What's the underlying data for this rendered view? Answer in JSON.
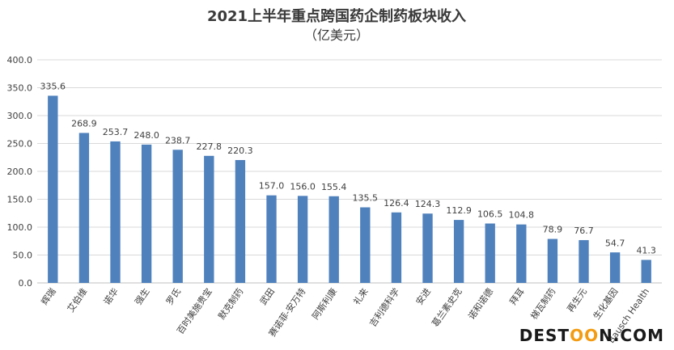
{
  "chart_data": {
    "type": "bar",
    "title": "2021上半年重点跨国药企制药板块收入",
    "subtitle": "（亿美元）",
    "categories": [
      "辉瑞",
      "艾伯维",
      "诺华",
      "强生",
      "罗氏",
      "百时美施贵宝",
      "默克制药",
      "武田",
      "赛诺菲-安万特",
      "阿斯利康",
      "礼来",
      "吉利德科学",
      "安进",
      "葛兰素史克",
      "诺和诺德",
      "拜耳",
      "梯瓦制药",
      "再生元",
      "生化基因",
      "Bausch Health"
    ],
    "values": [
      335.6,
      268.9,
      253.7,
      248.0,
      238.7,
      227.8,
      220.3,
      157.0,
      156.0,
      155.4,
      135.5,
      126.4,
      124.3,
      112.9,
      106.5,
      104.8,
      78.9,
      76.7,
      54.7,
      41.3
    ],
    "value_labels": [
      "335.6",
      "268.9",
      "253.7",
      "248.0",
      "238.7",
      "227.8",
      "220.3",
      "157.0",
      "156.0",
      "155.4",
      "135.5",
      "126.4",
      "124.3",
      "112.9",
      "106.5",
      "104.8",
      "78.9",
      "76.7",
      "54.7",
      "41.3"
    ],
    "yticks": [
      "0.0",
      "50.0",
      "100.0",
      "150.0",
      "200.0",
      "250.0",
      "300.0",
      "350.0",
      "400.0"
    ],
    "ylim": [
      0,
      400
    ],
    "grid": true,
    "bar_color": "#4f81bd"
  },
  "watermark": {
    "prefix": "DEST",
    "oo": "OO",
    "suffix": "N.COM"
  }
}
